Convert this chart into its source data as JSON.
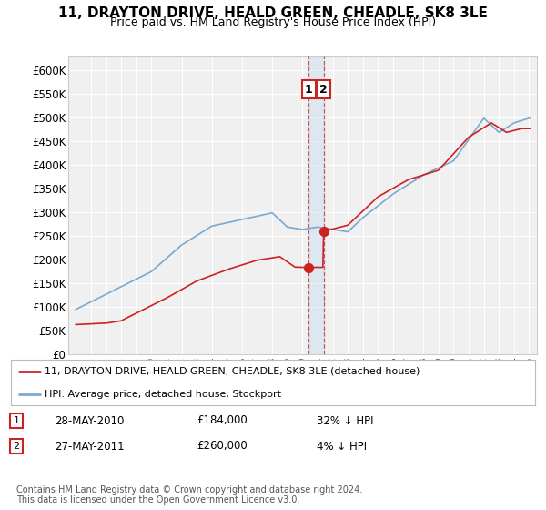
{
  "title": "11, DRAYTON DRIVE, HEALD GREEN, CHEADLE, SK8 3LE",
  "subtitle": "Price paid vs. HM Land Registry's House Price Index (HPI)",
  "ylabel_ticks": [
    "£0",
    "£50K",
    "£100K",
    "£150K",
    "£200K",
    "£250K",
    "£300K",
    "£350K",
    "£400K",
    "£450K",
    "£500K",
    "£550K",
    "£600K"
  ],
  "ytick_vals": [
    0,
    50000,
    100000,
    150000,
    200000,
    250000,
    300000,
    350000,
    400000,
    450000,
    500000,
    550000,
    600000
  ],
  "hpi_color": "#7aaad0",
  "price_color": "#cc2222",
  "span_color": "#cce0f0",
  "background_color": "#f0f0f0",
  "grid_color": "#ffffff",
  "legend_house_label": "11, DRAYTON DRIVE, HEALD GREEN, CHEADLE, SK8 3LE (detached house)",
  "legend_hpi_label": "HPI: Average price, detached house, Stockport",
  "footer": "Contains HM Land Registry data © Crown copyright and database right 2024.\nThis data is licensed under the Open Government Licence v3.0."
}
